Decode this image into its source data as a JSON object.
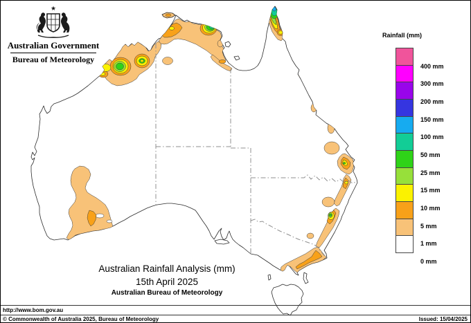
{
  "logo": {
    "government": "Australian Government",
    "bureau": "Bureau of Meteorology"
  },
  "legend": {
    "title": "Rainfall (mm)",
    "entries": [
      {
        "color": "#F0549B",
        "label": "400 mm"
      },
      {
        "color": "#FF00FF",
        "label": "300 mm"
      },
      {
        "color": "#9905EB",
        "label": "200 mm"
      },
      {
        "color": "#3535E0",
        "label": "150 mm"
      },
      {
        "color": "#16ABF0",
        "label": "100 mm"
      },
      {
        "color": "#12CD96",
        "label": "50 mm"
      },
      {
        "color": "#2FD318",
        "label": "25 mm"
      },
      {
        "color": "#97E03A",
        "label": "15 mm"
      },
      {
        "color": "#FBF200",
        "label": "10 mm"
      },
      {
        "color": "#F8A119",
        "label": "5 mm"
      },
      {
        "color": "#F8C278",
        "label": "1 mm"
      },
      {
        "color": "#FFFFFF",
        "label": "0 mm"
      }
    ]
  },
  "map": {
    "title": "Australian Rainfall Analysis (mm)",
    "date": "15th April 2025",
    "subtitle": "Australian Bureau of Meteorology",
    "land_color": "#FFFFFF",
    "coast_color": "#2B2B2B",
    "state_border_color": "#8F8F8F"
  },
  "footer": {
    "url": "http://www.bom.gov.au",
    "copyright": "© Commonwealth of Australia 2025, Bureau of Meteorology",
    "issued": "Issued: 15/04/2025"
  }
}
